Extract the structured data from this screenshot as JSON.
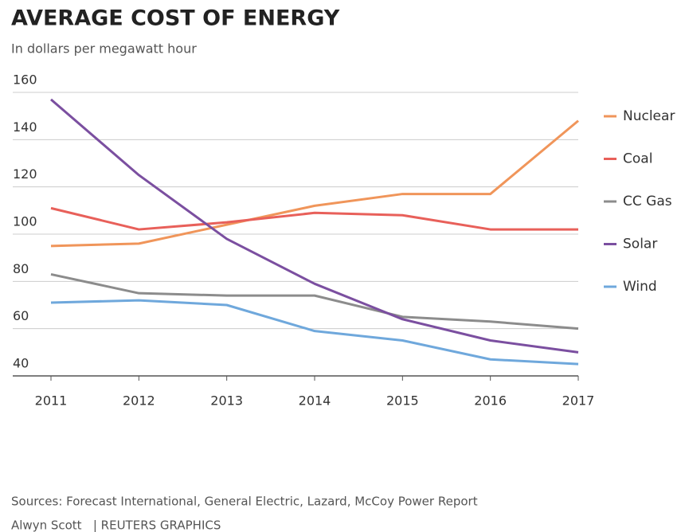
{
  "chart_data": {
    "type": "line",
    "title": "AVERAGE COST OF ENERGY",
    "subtitle": "In dollars per megawatt hour",
    "categories": [
      "2011",
      "2012",
      "2013",
      "2014",
      "2015",
      "2016",
      "2017"
    ],
    "series": [
      {
        "name": "Nuclear",
        "color": "#f0955a",
        "values": [
          95,
          96,
          104,
          112,
          117,
          117,
          148
        ]
      },
      {
        "name": "Coal",
        "color": "#e8605a",
        "values": [
          111,
          102,
          105,
          109,
          108,
          102,
          102
        ]
      },
      {
        "name": "CC Gas",
        "color": "#8c8c8c",
        "values": [
          83,
          75,
          74,
          74,
          65,
          63,
          60
        ]
      },
      {
        "name": "Solar",
        "color": "#7b4fa0",
        "values": [
          157,
          125,
          98,
          79,
          64,
          55,
          50
        ]
      },
      {
        "name": "Wind",
        "color": "#6fa8dc",
        "values": [
          71,
          72,
          70,
          59,
          55,
          47,
          45
        ]
      }
    ],
    "ylim": [
      40,
      160
    ],
    "yticks": [
      40,
      60,
      80,
      100,
      120,
      140,
      160
    ],
    "grid": true,
    "legend": "right",
    "source": "Sources: Forecast International, General Electric, Lazard, McCoy Power Report",
    "credit": "Alwyn Scott   | REUTERS GRAPHICS"
  }
}
